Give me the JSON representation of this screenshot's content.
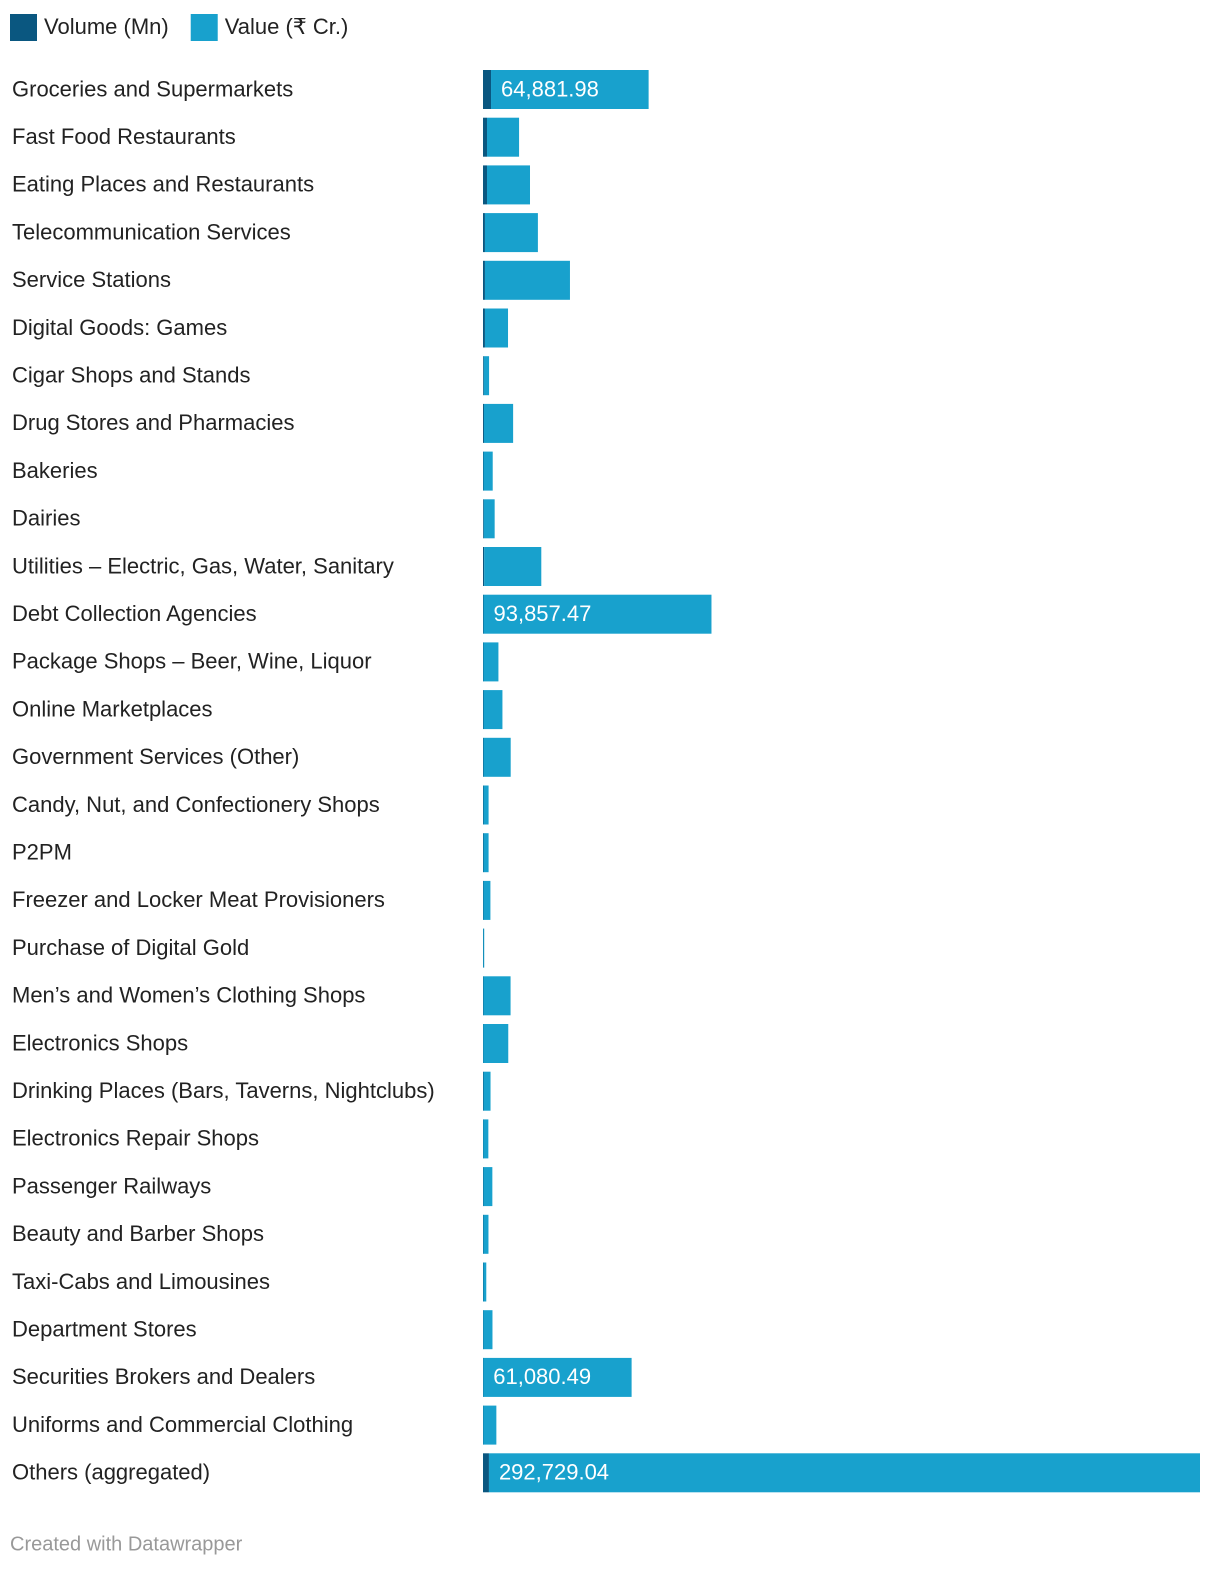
{
  "chart_data": {
    "type": "stacked-bar",
    "categories": [
      "Groceries and Supermarkets",
      "Fast Food Restaurants",
      "Eating Places and Restaurants",
      "Telecommunication Services",
      "Service Stations",
      "Digital Goods: Games",
      "Cigar Shops and Stands",
      "Drug Stores and Pharmacies",
      "Bakeries",
      "Dairies",
      "Utilities – Electric, Gas, Water, Sanitary",
      "Debt Collection Agencies",
      "Package Shops – Beer, Wine, Liquor",
      "Online Marketplaces",
      "Government Services (Other)",
      "Candy, Nut, and Confectionery Shops",
      "P2PM",
      "Freezer and Locker Meat Provisioners",
      "Purchase of Digital Gold",
      "Men’s and Women’s Clothing Shops",
      "Electronics Shops",
      "Drinking Places (Bars, Taverns, Nightclubs)",
      "Electronics Repair Shops",
      "Passenger Railways",
      "Beauty and Barber Shops",
      "Taxi-Cabs and Limousines",
      "Department Stores",
      "Securities Brokers and Dealers",
      "Uniforms and Commercial Clothing",
      "Others (aggregated)"
    ],
    "series": [
      {
        "name": "Volume (Mn)",
        "color": "#0a5780",
        "values": [
          3300,
          1650,
          1650,
          800,
          800,
          800,
          300,
          400,
          200,
          300,
          500,
          200,
          150,
          200,
          200,
          200,
          200,
          150,
          100,
          150,
          100,
          200,
          100,
          150,
          150,
          150,
          100,
          100,
          100,
          2450
        ]
      },
      {
        "name": "Value (₹ Cr.)",
        "color": "#18a1cd",
        "values": [
          64881.98,
          13200,
          17700,
          21800,
          35000,
          9500,
          2200,
          12000,
          3800,
          4500,
          23500,
          93857.47,
          6200,
          7800,
          11200,
          2100,
          2100,
          2900,
          400,
          11200,
          10300,
          2900,
          2100,
          3700,
          2100,
          1200,
          3800,
          61080.49,
          5400,
          292729.04
        ],
        "value_labels": [
          "64,881.98",
          null,
          null,
          null,
          null,
          null,
          null,
          null,
          null,
          null,
          null,
          "93,857.47",
          null,
          null,
          null,
          null,
          null,
          null,
          null,
          null,
          null,
          null,
          null,
          null,
          null,
          null,
          null,
          "61,080.49",
          null,
          "292,729.04"
        ]
      }
    ],
    "footer": "Created with Datawrapper"
  }
}
